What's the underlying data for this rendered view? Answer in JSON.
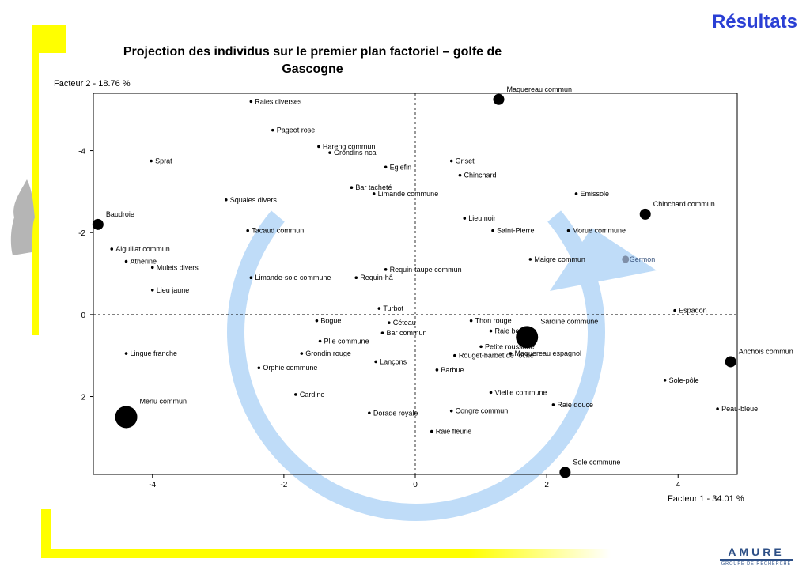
{
  "header": {
    "title": "Résultats"
  },
  "logo": {
    "word": "AMURE",
    "subtitle": "GROUPE DE RECHERCHE"
  },
  "chart_data": {
    "type": "scatter",
    "title": "Projection des individus sur le premier plan factoriel – golfe de Gascogne",
    "xlabel": "Facteur 1  -  34.01 %",
    "ylabel": "Facteur 2  -  18.76 %",
    "xlim": [
      -4.9,
      4.9
    ],
    "ylim": [
      -5.4,
      3.9
    ],
    "y_axis_inverted": true,
    "xticks": [
      -4,
      -2,
      0,
      2,
      4
    ],
    "yticks": [
      -4,
      -2,
      0,
      2
    ],
    "grid": false,
    "reference_lines": [
      "x=0",
      "y=0"
    ],
    "annotation": "circular arrow",
    "points": [
      {
        "label": "Maquereau commun",
        "x": 1.27,
        "y": -5.25,
        "size": "medium"
      },
      {
        "label": "Raies diverses",
        "x": -2.5,
        "y": -5.2,
        "size": "small"
      },
      {
        "label": "Pageot rose",
        "x": -2.17,
        "y": -4.5,
        "size": "small"
      },
      {
        "label": "Hareng commun",
        "x": -1.47,
        "y": -4.1,
        "size": "small"
      },
      {
        "label": "Grondins nca",
        "x": -1.3,
        "y": -3.95,
        "size": "small"
      },
      {
        "label": "Sprat",
        "x": -4.02,
        "y": -3.75,
        "size": "small"
      },
      {
        "label": "Eglefin",
        "x": -0.45,
        "y": -3.6,
        "size": "small"
      },
      {
        "label": "Bar tacheté",
        "x": -0.97,
        "y": -3.1,
        "size": "small"
      },
      {
        "label": "Limande commune",
        "x": -0.63,
        "y": -2.95,
        "size": "small"
      },
      {
        "label": "Squales divers",
        "x": -2.88,
        "y": -2.8,
        "size": "small"
      },
      {
        "label": "Baudroie",
        "x": -4.83,
        "y": -2.2,
        "size": "medium"
      },
      {
        "label": "Tacaud commun",
        "x": -2.55,
        "y": -2.05,
        "size": "small"
      },
      {
        "label": "Aiguillat commun",
        "x": -4.62,
        "y": -1.6,
        "size": "small"
      },
      {
        "label": "Athérine",
        "x": -4.4,
        "y": -1.3,
        "size": "small"
      },
      {
        "label": "Mulets divers",
        "x": -4.0,
        "y": -1.15,
        "size": "small"
      },
      {
        "label": "Limande-sole commune",
        "x": -2.5,
        "y": -0.9,
        "size": "small"
      },
      {
        "label": "Lieu jaune",
        "x": -4.0,
        "y": -0.6,
        "size": "small"
      },
      {
        "label": "Requin-taupe commun",
        "x": -0.45,
        "y": -1.1,
        "size": "small"
      },
      {
        "label": "Requin-hâ",
        "x": -0.9,
        "y": -0.9,
        "size": "small"
      },
      {
        "label": "Turbot",
        "x": -0.55,
        "y": -0.15,
        "size": "small"
      },
      {
        "label": "Bogue",
        "x": -1.5,
        "y": 0.15,
        "size": "small"
      },
      {
        "label": "Céteau",
        "x": -0.4,
        "y": 0.2,
        "size": "small"
      },
      {
        "label": "Plie commune",
        "x": -1.45,
        "y": 0.65,
        "size": "small"
      },
      {
        "label": "Bar commun",
        "x": -0.5,
        "y": 0.45,
        "size": "small"
      },
      {
        "label": "Grondin rouge",
        "x": -1.73,
        "y": 0.95,
        "size": "small"
      },
      {
        "label": "Lingue franche",
        "x": -4.4,
        "y": 0.95,
        "size": "small"
      },
      {
        "label": "Orphie commune",
        "x": -2.38,
        "y": 1.3,
        "size": "small"
      },
      {
        "label": "Cardine",
        "x": -1.82,
        "y": 1.95,
        "size": "small"
      },
      {
        "label": "Lançons",
        "x": -0.6,
        "y": 1.15,
        "size": "small"
      },
      {
        "label": "Merlu commun",
        "x": -4.4,
        "y": 2.5,
        "size": "large"
      },
      {
        "label": "Dorade royale",
        "x": -0.7,
        "y": 2.4,
        "size": "small"
      },
      {
        "label": "Griset",
        "x": 0.55,
        "y": -3.75,
        "size": "small"
      },
      {
        "label": "Chinchard",
        "x": 0.68,
        "y": -3.4,
        "size": "small"
      },
      {
        "label": "Lieu noir",
        "x": 0.75,
        "y": -2.35,
        "size": "small"
      },
      {
        "label": "Saint-Pierre",
        "x": 1.18,
        "y": -2.05,
        "size": "small"
      },
      {
        "label": "Emissole",
        "x": 2.45,
        "y": -2.95,
        "size": "small"
      },
      {
        "label": "Chinchard commun",
        "x": 3.5,
        "y": -2.45,
        "size": "medium"
      },
      {
        "label": "Morue commune",
        "x": 2.33,
        "y": -2.05,
        "size": "small"
      },
      {
        "label": "Maigre commun",
        "x": 1.75,
        "y": -1.35,
        "size": "small"
      },
      {
        "label": "Germon",
        "x": 3.2,
        "y": -1.35,
        "size": "small"
      },
      {
        "label": "Espadon",
        "x": 3.95,
        "y": -0.1,
        "size": "small"
      },
      {
        "label": "Thon rouge",
        "x": 0.85,
        "y": 0.15,
        "size": "small"
      },
      {
        "label": "Raie bouclée",
        "x": 1.15,
        "y": 0.4,
        "size": "small"
      },
      {
        "label": "Sardine commune",
        "x": 1.7,
        "y": 0.55,
        "size": "large"
      },
      {
        "label": "Petite roussette",
        "x": 1.0,
        "y": 0.78,
        "size": "small"
      },
      {
        "label": "Rouget-barbet de roche",
        "x": 0.6,
        "y": 1.0,
        "size": "small"
      },
      {
        "label": "Maquereau espagnol",
        "x": 1.45,
        "y": 0.95,
        "size": "small"
      },
      {
        "label": "Barbue",
        "x": 0.33,
        "y": 1.35,
        "size": "small"
      },
      {
        "label": "Vieille commune",
        "x": 1.15,
        "y": 1.9,
        "size": "small"
      },
      {
        "label": "Congre commun",
        "x": 0.55,
        "y": 2.35,
        "size": "small"
      },
      {
        "label": "Raie douce",
        "x": 2.1,
        "y": 2.2,
        "size": "small"
      },
      {
        "label": "Raie fleurie",
        "x": 0.25,
        "y": 2.85,
        "size": "small"
      },
      {
        "label": "Anchois commun",
        "x": 4.8,
        "y": 1.15,
        "size": "medium"
      },
      {
        "label": "Sole-pôle",
        "x": 3.8,
        "y": 1.6,
        "size": "small"
      },
      {
        "label": "Peau-bleue",
        "x": 4.6,
        "y": 2.3,
        "size": "small"
      },
      {
        "label": "Sole commune",
        "x": 2.28,
        "y": 3.85,
        "size": "medium"
      }
    ]
  }
}
